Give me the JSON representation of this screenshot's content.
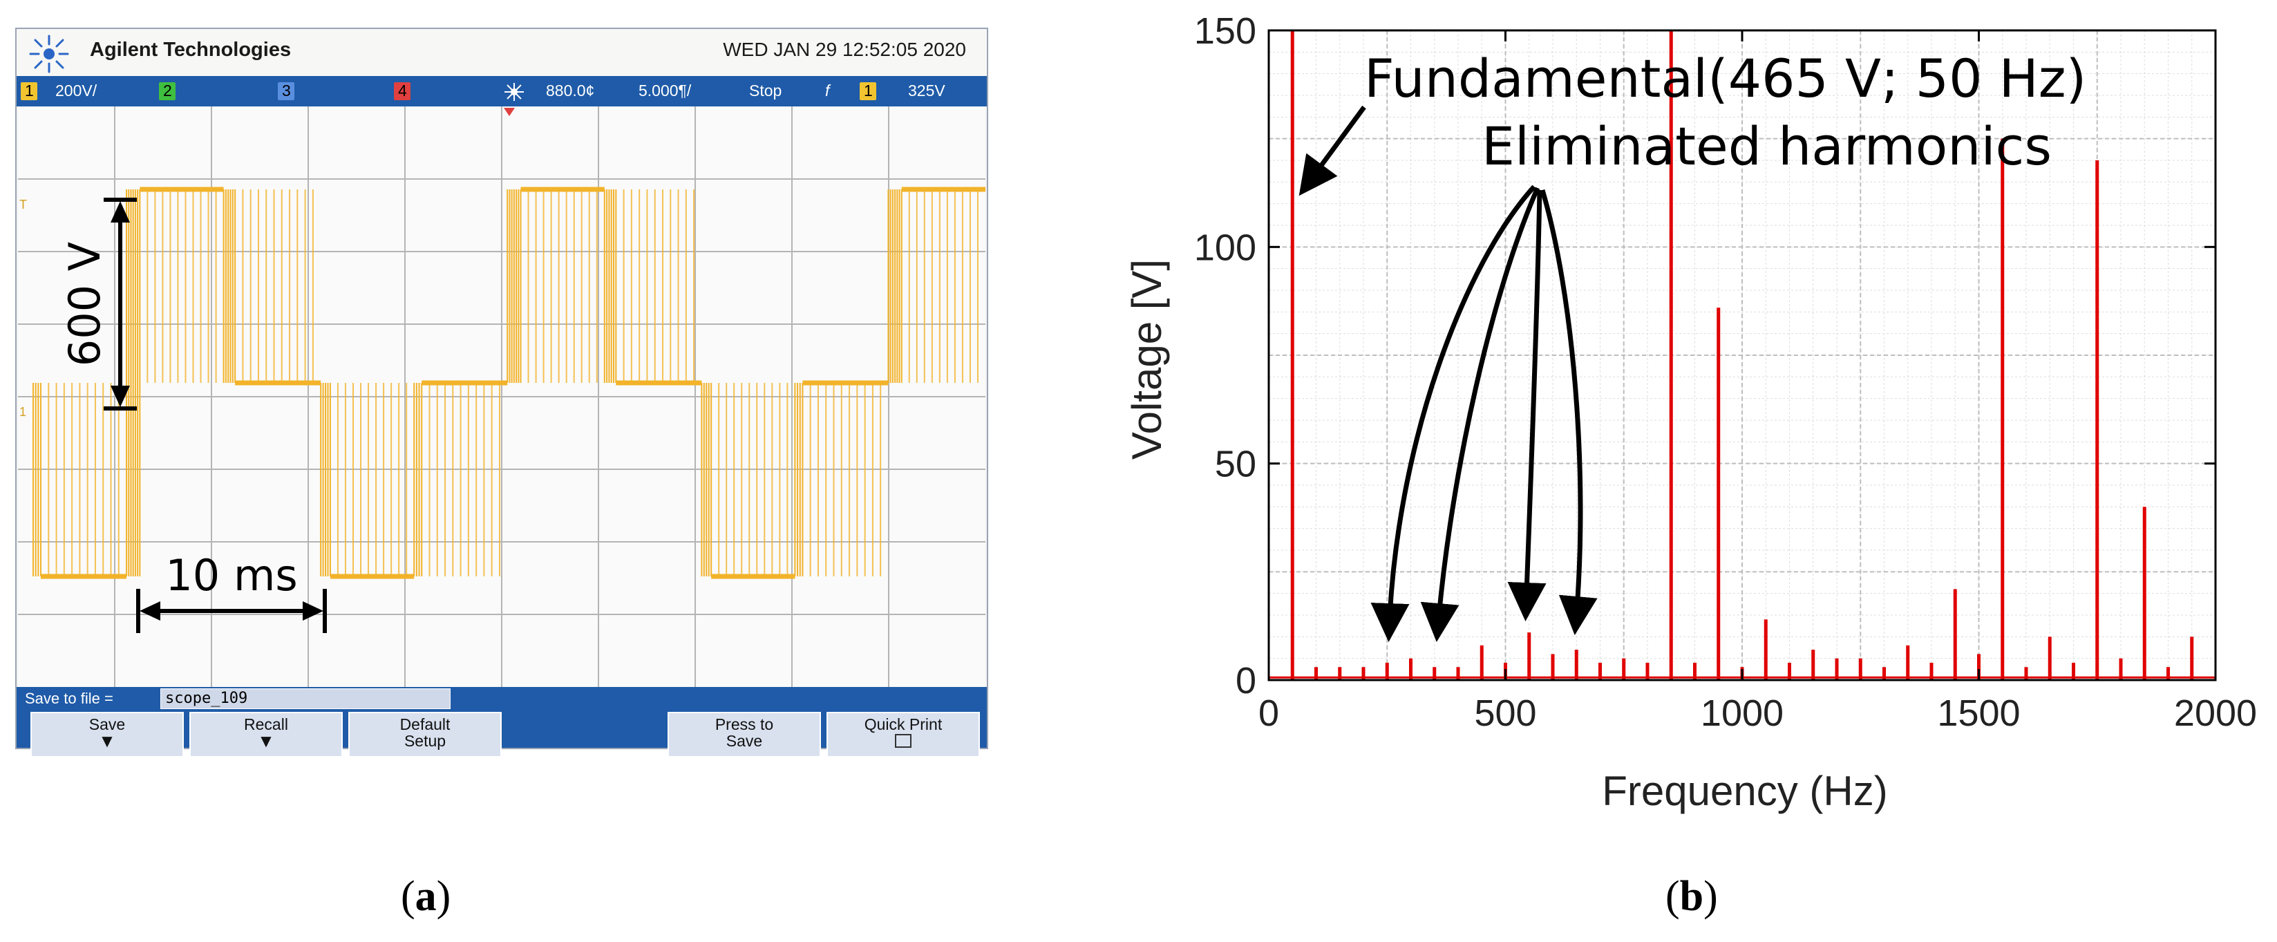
{
  "panel_a": {
    "label_prefix": "(",
    "label_letter": "a",
    "label_suffix": ")",
    "header": {
      "brand": "Agilent Technologies",
      "datetime": "WED JAN 29 12:52:05 2020"
    },
    "status_bar": {
      "ch1_number": "1",
      "ch1_scale": "200V/",
      "ch2_number": "2",
      "ch3_number": "3",
      "ch4_number": "4",
      "time_position": "880.0¢",
      "time_scale": "5.000¶/",
      "run_state": "Stop",
      "trigger_symbol": "f",
      "trigger_channel": "1",
      "trigger_level": "325V"
    },
    "annotations": {
      "voltage": "600 V",
      "time": "10 ms"
    },
    "bottom_bar": {
      "save_to_file_label": "Save to file =",
      "file_name": "scope_109",
      "softkeys": [
        {
          "line1": "Save",
          "line2": ""
        },
        {
          "line1": "Recall",
          "line2": ""
        },
        {
          "line1": "Default",
          "line2": "Setup"
        },
        {
          "line1": "Press to",
          "line2": "Save"
        },
        {
          "line1": "Quick Print",
          "line2": ""
        }
      ]
    },
    "colors": {
      "trace": "#f2b32a",
      "softkey_bar": "#1f5ba8",
      "screen": "#fafafa"
    }
  },
  "panel_b": {
    "label_prefix": "(",
    "label_letter": "b",
    "label_suffix": ")",
    "annotations": {
      "fundamental": "Fundamental(465 V; 50 Hz)",
      "eliminated": "Eliminated harmonics"
    },
    "colors": {
      "line": "#e00000",
      "grid": "#c8c8c8",
      "axis": "#000000"
    }
  },
  "chart_data": [
    {
      "type": "line",
      "title": "",
      "xlabel": "",
      "ylabel": "",
      "x_unit": "ms",
      "y_unit": "V",
      "xlim": [
        0,
        50
      ],
      "ylim": [
        -450,
        450
      ],
      "grid": true,
      "series": [
        {
          "x": [
            0,
            0.4,
            4.9,
            5.6,
            10.0,
            10.6,
            15.1,
            15.6,
            20.0,
            20.4,
            24.9,
            25.6,
            30.0,
            30.6,
            35.1,
            35.6,
            40.0,
            40.4,
            44.9,
            45.6,
            50.0
          ],
          "y": [
            0,
            -300,
            -300,
            300,
            300,
            0,
            0,
            -300,
            -300,
            0,
            0,
            300,
            300,
            0,
            0,
            -300,
            -300,
            0,
            0,
            300,
            300
          ]
        }
      ]
    },
    {
      "type": "bar",
      "title": "",
      "xlabel": "Frequency (Hz)",
      "ylabel": "Voltage [V]",
      "xlim": [
        0,
        2000
      ],
      "ylim": [
        0,
        150
      ],
      "xticks": [
        0,
        500,
        1000,
        1500,
        2000
      ],
      "yticks": [
        0,
        50,
        100,
        150
      ],
      "grid": true,
      "legend": "none",
      "x": [
        50,
        100,
        150,
        200,
        250,
        300,
        350,
        400,
        450,
        500,
        550,
        600,
        650,
        700,
        750,
        800,
        850,
        900,
        950,
        1000,
        1050,
        1100,
        1150,
        1200,
        1250,
        1300,
        1350,
        1400,
        1450,
        1500,
        1550,
        1600,
        1650,
        1700,
        1750,
        1800,
        1850,
        1900,
        1950
      ],
      "values": [
        150,
        3,
        3,
        3,
        4,
        5,
        3,
        3,
        8,
        4,
        11,
        6,
        7,
        4,
        5,
        4,
        150,
        4,
        86,
        3,
        14,
        4,
        7,
        5,
        5,
        3,
        8,
        4,
        21,
        6,
        125,
        3,
        10,
        4,
        120,
        5,
        40,
        3,
        10
      ]
    }
  ]
}
